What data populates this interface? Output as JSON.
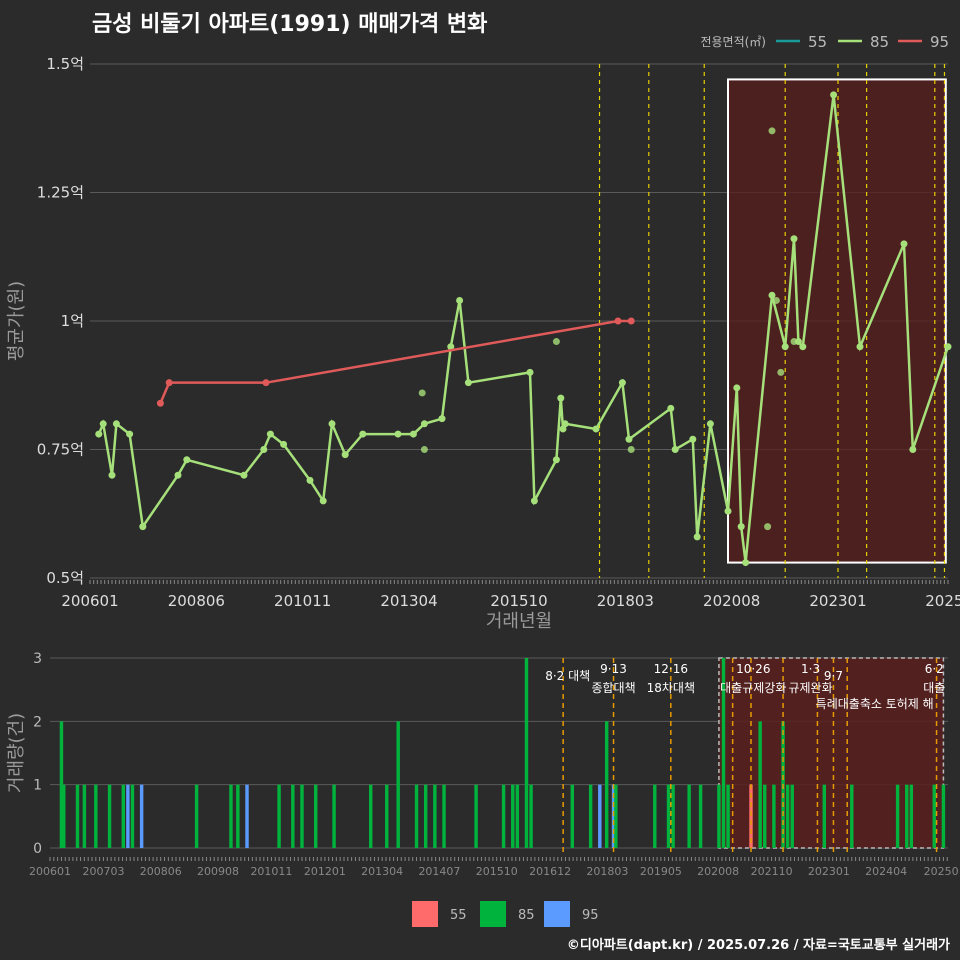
{
  "title": "금성 비둘기 아파트(1991) 매매가격 변화",
  "footer": "©디아파트(dapt.kr) / 2025.07.26 / 자료=국토교통부 실거래가",
  "colors": {
    "s55": "#e05a5a",
    "s85": "#a6e07a",
    "s95": "#e05a5a",
    "bar55": "#ff6b6b",
    "bar85": "#00b33c",
    "bar95": "#5b9bff",
    "policy": "#e6d000",
    "policyBottom": "#e69a00",
    "highlight": "#5a1e1e"
  },
  "chart_data": [
    {
      "type": "line",
      "title": "금성 비둘기 아파트(1991) 매매가격 변화",
      "xlabel": "거래년월",
      "ylabel": "평균가(원)",
      "ylim": [
        0.5,
        1.5
      ],
      "yticks": [
        0.5,
        0.75,
        1.0,
        1.25,
        1.5
      ],
      "ytick_labels": [
        "0.5억",
        "0.75억",
        "1억",
        "1.25억",
        "1.5억"
      ],
      "xlim": [
        2006.0,
        2025.5
      ],
      "xticks": [
        2006.0,
        2008.4167,
        2010.8333,
        2013.25,
        2015.75,
        2018.1667,
        2020.5833,
        2023.0,
        2025.4167
      ],
      "xtick_labels": [
        "200601",
        "200806",
        "201011",
        "201304",
        "201510",
        "201803",
        "202008",
        "202301",
        "2025"
      ],
      "legend": {
        "title": "전용면적(㎡)",
        "entries": [
          "55",
          "85",
          "95"
        ],
        "placement": "top-right"
      },
      "policy_lines": [
        2017.58,
        2018.7,
        2019.96,
        2021.8,
        2023.0,
        2023.65,
        2025.2,
        2025.42
      ],
      "highlight_range": {
        "x": [
          2020.5,
          2025.45
        ],
        "y": [
          0.53,
          1.47
        ]
      },
      "series": [
        {
          "name": "85",
          "color_key": "s85",
          "x": [
            2006.2,
            2006.3,
            2006.5,
            2006.6,
            2006.9,
            2007.2,
            2008.0,
            2008.2,
            2009.5,
            2009.95,
            2010.1,
            2010.4,
            2011.0,
            2011.3,
            2011.5,
            2011.8,
            2012.2,
            2013.0,
            2013.35,
            2013.6,
            2014.0,
            2014.2,
            2014.4,
            2014.6,
            2016.0,
            2016.1,
            2016.6,
            2016.7,
            2016.75,
            2016.8,
            2017.5,
            2018.1,
            2018.25,
            2019.2,
            2019.3,
            2019.7,
            2019.8,
            2020.1,
            2020.5,
            2020.7,
            2020.8,
            2020.9,
            2021.5,
            2021.8,
            2022.0,
            2022.1,
            2022.2,
            2022.9,
            2023.5,
            2024.5,
            2024.7,
            2025.5
          ],
          "y": [
            0.78,
            0.8,
            0.7,
            0.8,
            0.78,
            0.6,
            0.7,
            0.73,
            0.7,
            0.75,
            0.78,
            0.76,
            0.69,
            0.65,
            0.8,
            0.74,
            0.78,
            0.78,
            0.78,
            0.8,
            0.81,
            0.95,
            1.04,
            0.88,
            0.9,
            0.65,
            0.73,
            0.85,
            0.79,
            0.8,
            0.79,
            0.88,
            0.77,
            0.83,
            0.75,
            0.77,
            0.58,
            0.8,
            0.63,
            0.87,
            0.6,
            0.53,
            1.05,
            0.95,
            1.16,
            0.96,
            0.95,
            1.44,
            0.95,
            1.15,
            0.75,
            0.95
          ]
        },
        {
          "name": "95",
          "color_key": "s95",
          "x": [
            2007.6,
            2007.8,
            2010.0,
            2018.0,
            2018.3
          ],
          "y": [
            0.84,
            0.88,
            0.88,
            1.0,
            1.0
          ]
        }
      ],
      "extra_points": [
        {
          "x": 2013.55,
          "y": 0.86
        },
        {
          "x": 2013.6,
          "y": 0.75
        },
        {
          "x": 2016.6,
          "y": 0.96
        },
        {
          "x": 2018.3,
          "y": 0.75
        },
        {
          "x": 2021.5,
          "y": 1.37
        },
        {
          "x": 2021.6,
          "y": 1.04
        },
        {
          "x": 2021.7,
          "y": 0.9
        },
        {
          "x": 2021.4,
          "y": 0.6
        },
        {
          "x": 2022.0,
          "y": 0.96
        }
      ]
    },
    {
      "type": "bar",
      "ylabel": "거래량(건)",
      "ylim": [
        0,
        3
      ],
      "yticks": [
        0,
        1,
        2,
        3
      ],
      "ytick_labels": [
        "0",
        "1",
        "2",
        "3"
      ],
      "xlim": [
        2006.0,
        2025.6
      ],
      "xticks": [
        2006.0,
        2007.1667,
        2008.4167,
        2009.6667,
        2010.8333,
        2012.0,
        2013.25,
        2014.5,
        2015.75,
        2016.9167,
        2018.1667,
        2019.3333,
        2020.5833,
        2021.75,
        2023.0,
        2024.25,
        2025.45
      ],
      "xtick_labels": [
        "200601",
        "200703",
        "200806",
        "200908",
        "201011",
        "201201",
        "201304",
        "201407",
        "201510",
        "201612",
        "201803",
        "201905",
        "202008",
        "202110",
        "202301",
        "202404",
        "20250"
      ],
      "highlight_range": {
        "x": [
          2020.6,
          2025.5
        ],
        "y": [
          0,
          3
        ]
      },
      "policy_lines": [
        2017.2,
        2018.3,
        2019.55,
        2020.9,
        2021.3,
        2022.0,
        2022.75,
        2023.1,
        2023.4,
        2025.35
      ],
      "annotations": [
        {
          "x": 2017.3,
          "line1": "",
          "line2": "8·2 대책"
        },
        {
          "x": 2018.3,
          "line1": "9·13",
          "line2": "종합대책"
        },
        {
          "x": 2019.55,
          "line1": "12·16",
          "line2": "18차대책"
        },
        {
          "x": 2021.35,
          "line1": "10·26",
          "line2": "대출규제강화"
        },
        {
          "x": 2022.6,
          "line1": "1·3",
          "line2": "규제완화"
        },
        {
          "x": 2023.1,
          "line1": "",
          "line2": "9·7"
        },
        {
          "x": 2024.0,
          "line1": "",
          "line3": "특례대출축소 토허제 해"
        },
        {
          "x": 2025.3,
          "line1": "6·2",
          "line2": "대출"
        }
      ],
      "bars": [
        {
          "x": 2006.25,
          "v": 2,
          "s": "85"
        },
        {
          "x": 2006.3,
          "v": 1,
          "s": "85"
        },
        {
          "x": 2006.6,
          "v": 1,
          "s": "85"
        },
        {
          "x": 2006.75,
          "v": 1,
          "s": "85"
        },
        {
          "x": 2007.0,
          "v": 1,
          "s": "85"
        },
        {
          "x": 2007.3,
          "v": 1,
          "s": "85"
        },
        {
          "x": 2007.6,
          "v": 1,
          "s": "85"
        },
        {
          "x": 2007.7,
          "v": 1,
          "s": "95"
        },
        {
          "x": 2007.8,
          "v": 1,
          "s": "85"
        },
        {
          "x": 2008.0,
          "v": 1,
          "s": "95"
        },
        {
          "x": 2009.2,
          "v": 1,
          "s": "85"
        },
        {
          "x": 2009.95,
          "v": 1,
          "s": "85"
        },
        {
          "x": 2010.1,
          "v": 1,
          "s": "85"
        },
        {
          "x": 2010.3,
          "v": 1,
          "s": "95"
        },
        {
          "x": 2011.0,
          "v": 1,
          "s": "85"
        },
        {
          "x": 2011.3,
          "v": 1,
          "s": "85"
        },
        {
          "x": 2011.5,
          "v": 1,
          "s": "85"
        },
        {
          "x": 2011.8,
          "v": 1,
          "s": "85"
        },
        {
          "x": 2012.2,
          "v": 1,
          "s": "85"
        },
        {
          "x": 2013.0,
          "v": 1,
          "s": "85"
        },
        {
          "x": 2013.35,
          "v": 1,
          "s": "85"
        },
        {
          "x": 2013.6,
          "v": 2,
          "s": "85"
        },
        {
          "x": 2014.0,
          "v": 1,
          "s": "85"
        },
        {
          "x": 2014.2,
          "v": 1,
          "s": "85"
        },
        {
          "x": 2014.4,
          "v": 1,
          "s": "85"
        },
        {
          "x": 2014.6,
          "v": 1,
          "s": "85"
        },
        {
          "x": 2015.3,
          "v": 1,
          "s": "85"
        },
        {
          "x": 2015.9,
          "v": 1,
          "s": "85"
        },
        {
          "x": 2016.1,
          "v": 1,
          "s": "85"
        },
        {
          "x": 2016.2,
          "v": 1,
          "s": "85"
        },
        {
          "x": 2016.4,
          "v": 3,
          "s": "85"
        },
        {
          "x": 2016.5,
          "v": 1,
          "s": "85"
        },
        {
          "x": 2017.4,
          "v": 1,
          "s": "85"
        },
        {
          "x": 2017.8,
          "v": 1,
          "s": "85"
        },
        {
          "x": 2018.0,
          "v": 1,
          "s": "95"
        },
        {
          "x": 2018.15,
          "v": 2,
          "s": "85"
        },
        {
          "x": 2018.3,
          "v": 1,
          "s": "95"
        },
        {
          "x": 2018.35,
          "v": 1,
          "s": "85"
        },
        {
          "x": 2019.2,
          "v": 1,
          "s": "85"
        },
        {
          "x": 2019.5,
          "v": 1,
          "s": "85"
        },
        {
          "x": 2019.6,
          "v": 1,
          "s": "85"
        },
        {
          "x": 2019.95,
          "v": 1,
          "s": "85"
        },
        {
          "x": 2020.2,
          "v": 1,
          "s": "85"
        },
        {
          "x": 2020.6,
          "v": 1,
          "s": "85"
        },
        {
          "x": 2020.7,
          "v": 3,
          "s": "85"
        },
        {
          "x": 2020.8,
          "v": 1,
          "s": "85"
        },
        {
          "x": 2021.3,
          "v": 1,
          "s": "55"
        },
        {
          "x": 2021.5,
          "v": 2,
          "s": "85"
        },
        {
          "x": 2021.6,
          "v": 1,
          "s": "85"
        },
        {
          "x": 2021.8,
          "v": 1,
          "s": "85"
        },
        {
          "x": 2022.0,
          "v": 2,
          "s": "85"
        },
        {
          "x": 2022.1,
          "v": 1,
          "s": "85"
        },
        {
          "x": 2022.2,
          "v": 1,
          "s": "85"
        },
        {
          "x": 2022.9,
          "v": 1,
          "s": "85"
        },
        {
          "x": 2023.5,
          "v": 1,
          "s": "85"
        },
        {
          "x": 2024.5,
          "v": 1,
          "s": "85"
        },
        {
          "x": 2024.7,
          "v": 1,
          "s": "85"
        },
        {
          "x": 2024.8,
          "v": 1,
          "s": "85"
        },
        {
          "x": 2025.3,
          "v": 1,
          "s": "85"
        },
        {
          "x": 2025.5,
          "v": 1,
          "s": "85"
        }
      ],
      "legend": {
        "entries": [
          "55",
          "85",
          "95"
        ],
        "placement": "bottom"
      }
    }
  ]
}
